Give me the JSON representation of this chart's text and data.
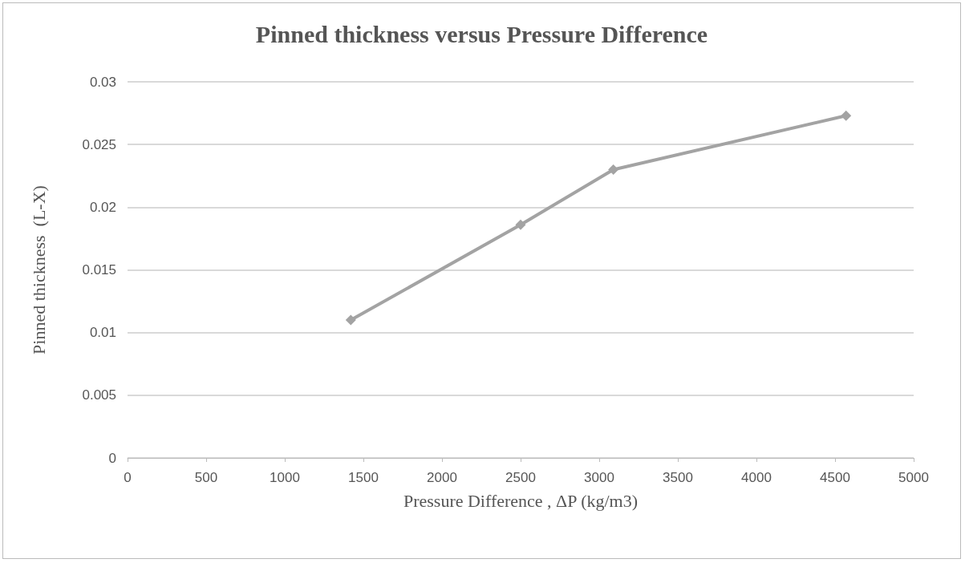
{
  "chart_data": {
    "type": "line",
    "title": "Pinned thickness versus Pressure Difference",
    "xlabel": "Pressure Difference , ΔP (kg/m3)",
    "ylabel": "Pinned thickness  (L-X)",
    "x": [
      1420,
      2500,
      3090,
      4570
    ],
    "series": [
      {
        "color": "#a3a3a3",
        "values": [
          0.011,
          0.0186,
          0.023,
          0.0273
        ]
      }
    ],
    "xlim": [
      0,
      5000
    ],
    "xticks": [
      0,
      500,
      1000,
      1500,
      2000,
      2500,
      3000,
      3500,
      4000,
      4500,
      5000
    ],
    "ylim": [
      0,
      0.03
    ],
    "yticks": [
      0,
      0.005,
      0.01,
      0.015,
      0.02,
      0.025,
      0.03
    ],
    "grid": "y",
    "marker": "diamond",
    "line_style": "solid"
  }
}
